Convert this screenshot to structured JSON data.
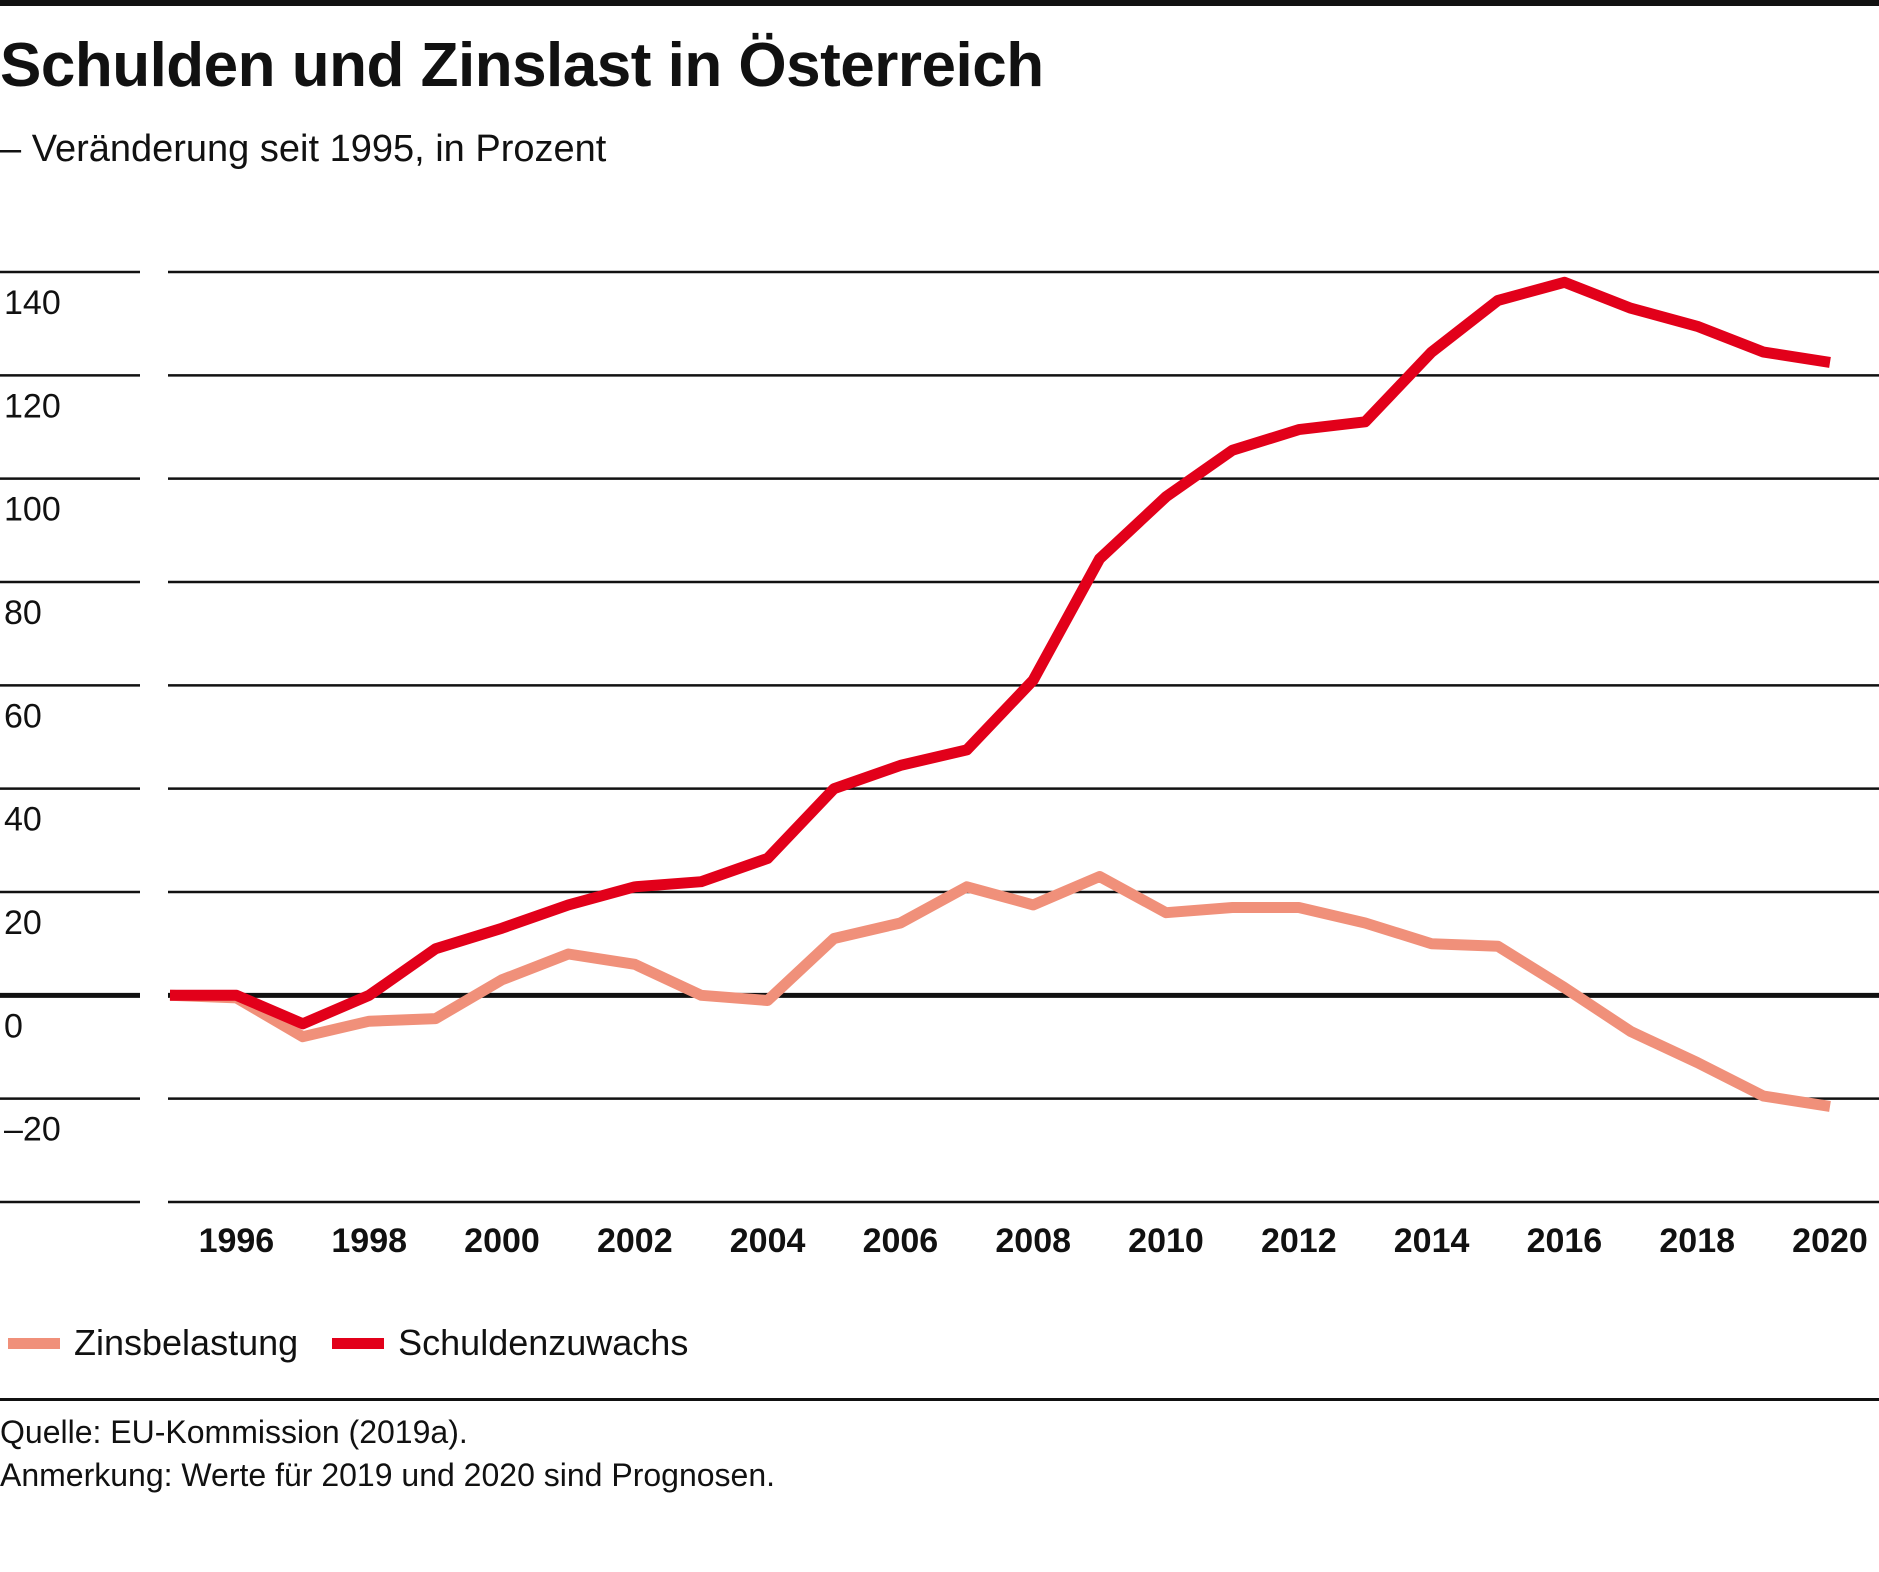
{
  "header": {
    "title": "Schulden und Zinslast in Österreich",
    "subtitle": "– Veränderung seit 1995, in Prozent"
  },
  "chart_data": {
    "type": "line",
    "title": "Schulden und Zinslast in Österreich",
    "subtitle": "– Veränderung seit 1995, in Prozent",
    "xlabel": "",
    "ylabel": "",
    "x": [
      1995,
      1996,
      1997,
      1998,
      1999,
      2000,
      2001,
      2002,
      2003,
      2004,
      2005,
      2006,
      2007,
      2008,
      2009,
      2010,
      2011,
      2012,
      2013,
      2014,
      2015,
      2016,
      2017,
      2018,
      2019,
      2020
    ],
    "xlim": [
      1995,
      2020
    ],
    "xticks": [
      1996,
      1998,
      2000,
      2002,
      2004,
      2006,
      2008,
      2010,
      2012,
      2014,
      2016,
      2018,
      2020
    ],
    "ylim": [
      -40,
      140
    ],
    "yticks": [
      -20,
      0,
      20,
      40,
      60,
      80,
      100,
      120,
      140
    ],
    "ytick_labels": [
      "–20",
      "0",
      "20",
      "40",
      "60",
      "80",
      "100",
      "120",
      "140"
    ],
    "zero_line": true,
    "grid": true,
    "legend_position": "bottom-left",
    "series": [
      {
        "name": "Zinsbelastung",
        "color": "#F0907A",
        "values": [
          0,
          -0.5,
          -8,
          -5,
          -4.5,
          3,
          8,
          6,
          0,
          -1,
          11,
          14,
          21,
          17.5,
          23,
          16,
          17,
          17,
          14,
          10,
          9.5,
          1.5,
          -7,
          -13,
          -19.5,
          -21.5
        ]
      },
      {
        "name": "Schuldenzuwachs",
        "color": "#E2001A",
        "values": [
          0,
          0,
          -5.5,
          0,
          9,
          13,
          17.5,
          21,
          22,
          26.5,
          40,
          44.5,
          47.5,
          61,
          84.5,
          96.5,
          105.5,
          109.5,
          111,
          124.5,
          134.5,
          138,
          133,
          129.5,
          124.5,
          122.5
        ]
      }
    ]
  },
  "legend": {
    "items": [
      {
        "label": "Zinsbelastung",
        "color": "#F0907A"
      },
      {
        "label": "Schuldenzuwachs",
        "color": "#E2001A"
      }
    ]
  },
  "footer": {
    "source": "Quelle: EU-Kommission (2019a).",
    "note": "Anmerkung: Werte für 2019 und 2020 sind Prognosen."
  }
}
